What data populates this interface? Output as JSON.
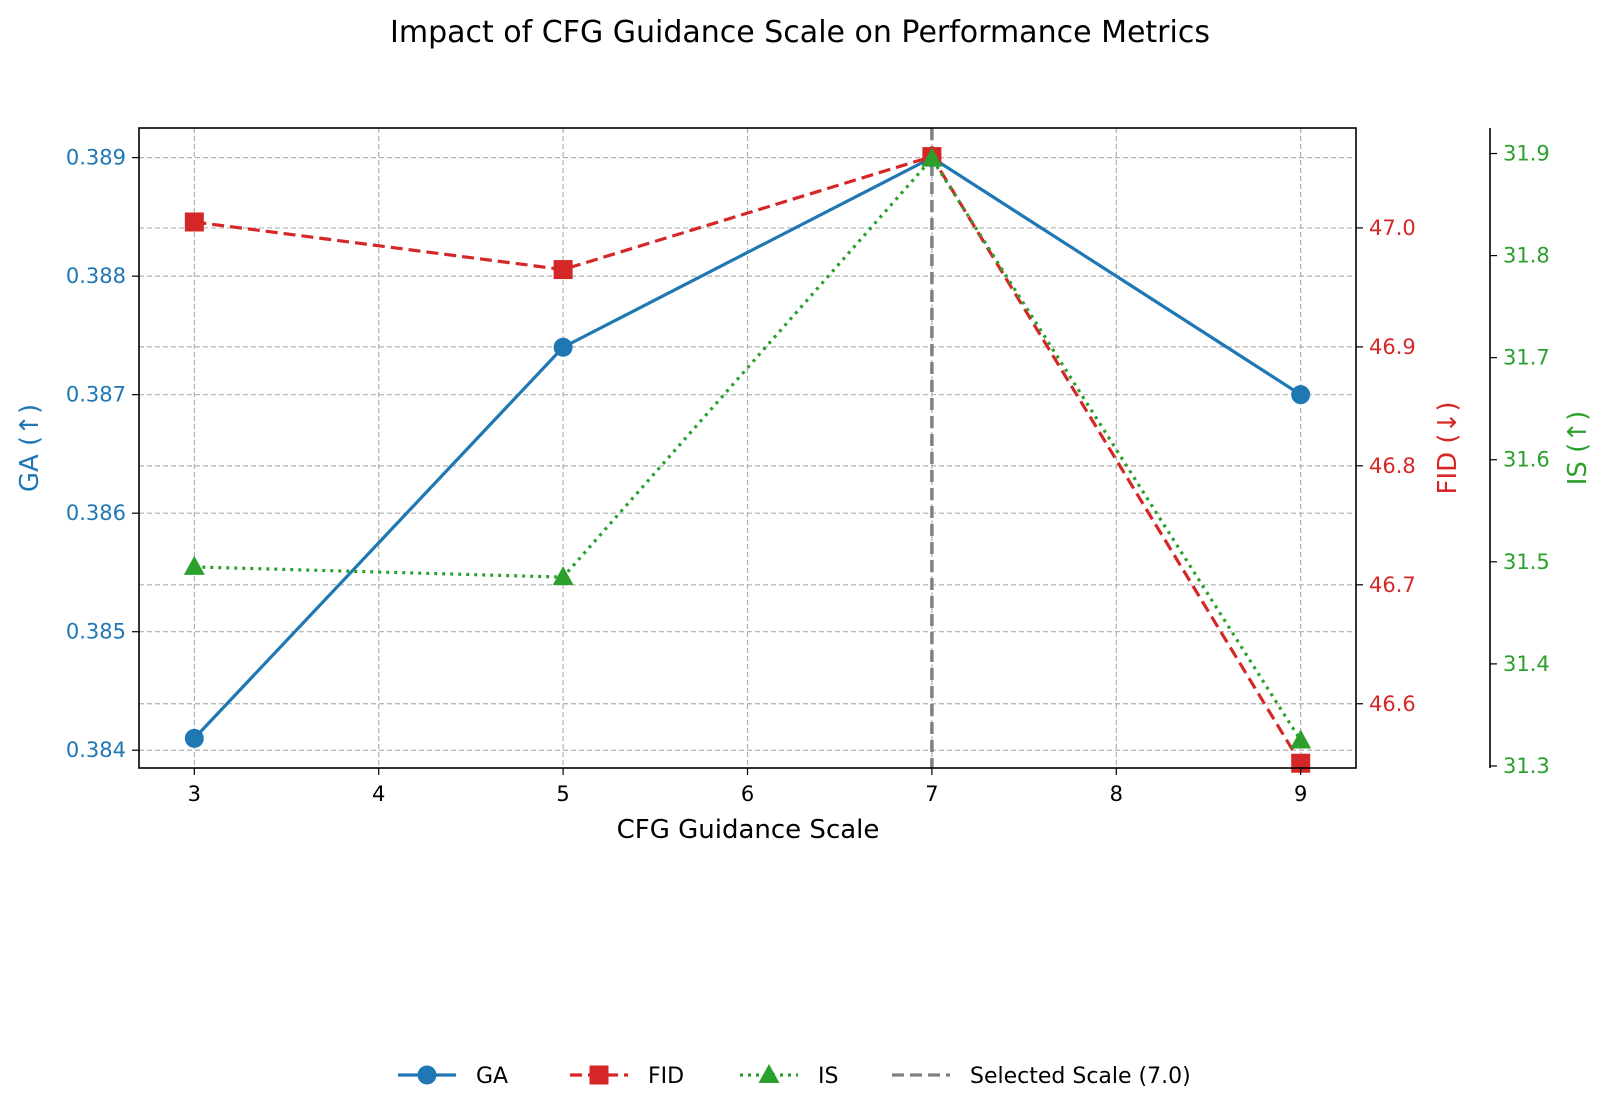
{
  "chart_data": {
    "type": "line",
    "title": "Impact of CFG Guidance Scale on Performance Metrics",
    "xlabel": "CFG Guidance Scale",
    "x": [
      3,
      5,
      7,
      9
    ],
    "x_ticks": [
      "3",
      "4",
      "5",
      "6",
      "7",
      "8",
      "9"
    ],
    "xlim": [
      2.7,
      9.3
    ],
    "grid": true,
    "legend_position": "bottom-center",
    "colors": {
      "ga": "#1f77b4",
      "fid": "#d62728",
      "is": "#2ca02c",
      "selected": "#808080"
    },
    "series": [
      {
        "name": "GA",
        "axis": "left",
        "ylabel": "GA (↑)",
        "values": [
          0.3841,
          0.3874,
          0.389,
          0.387
        ],
        "ylim": [
          0.38385,
          0.38925
        ],
        "ticks": [
          0.384,
          0.385,
          0.386,
          0.387,
          0.388,
          0.389
        ],
        "tick_labels": [
          "0.384",
          "0.385",
          "0.386",
          "0.387",
          "0.388",
          "0.389"
        ],
        "marker": "circle",
        "linestyle": "solid"
      },
      {
        "name": "FID",
        "axis": "right",
        "ylabel": "FID (↓)",
        "values": [
          47.005,
          46.965,
          47.06,
          46.55
        ],
        "ylim": [
          46.546,
          47.084
        ],
        "ticks": [
          46.6,
          46.7,
          46.8,
          46.9,
          47.0
        ],
        "tick_labels": [
          "46.6",
          "46.7",
          "46.8",
          "46.9",
          "47.0"
        ],
        "marker": "square",
        "linestyle": "dashed"
      },
      {
        "name": "IS",
        "axis": "right-outer",
        "ylabel": "IS (↑)",
        "values": [
          31.495,
          31.485,
          31.895,
          31.325
        ],
        "ylim": [
          31.298,
          31.925
        ],
        "ticks": [
          31.3,
          31.4,
          31.5,
          31.6,
          31.7,
          31.8,
          31.9
        ],
        "tick_labels": [
          "31.3",
          "31.4",
          "31.5",
          "31.6",
          "31.7",
          "31.8",
          "31.9"
        ],
        "marker": "triangle",
        "linestyle": "dotted"
      }
    ],
    "vline": {
      "x": 7.0,
      "label": "Selected Scale (7.0)"
    },
    "legend": [
      "GA",
      "FID",
      "IS",
      "Selected Scale (7.0)"
    ]
  }
}
